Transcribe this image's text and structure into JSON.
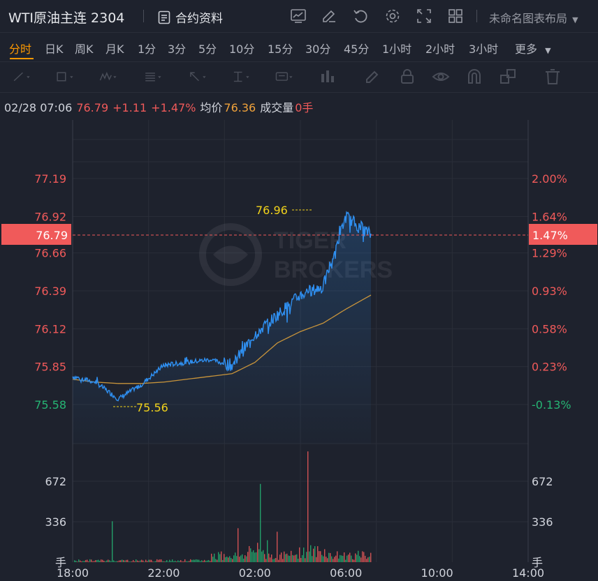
{
  "header": {
    "symbol": "WTI原油主连 2304",
    "contract_label": "合约资料",
    "layout_name": "未命名图表布局",
    "icons": [
      "chart-icon",
      "edit-icon",
      "undo-icon",
      "settings-icon",
      "fullscreen-icon",
      "grid-icon"
    ]
  },
  "intervals": {
    "items": [
      "分时",
      "日K",
      "周K",
      "月K",
      "1分",
      "3分",
      "5分",
      "10分",
      "15分",
      "30分",
      "45分",
      "1小时",
      "2小时",
      "3小时"
    ],
    "active": "分时",
    "more_label": "更多"
  },
  "drawing_tools": [
    "line-tool-icon",
    "rect-tool-icon",
    "pattern-tool-icon",
    "fib-tool-icon",
    "arrow-tool-icon",
    "measure-tool-icon",
    "text-tool-icon",
    "chart-type-icon",
    "brush-icon",
    "lock-icon",
    "eye-icon",
    "magnet-icon",
    "layers-icon",
    "trash-icon"
  ],
  "info": {
    "datetime": "02/28 07:06",
    "price": "76.79",
    "change": "+1.11",
    "change_pct": "+1.47%",
    "avg_label": "均价",
    "avg_value": "76.36",
    "vol_label": "成交量",
    "vol_value": "0手"
  },
  "watermark": "TIGER BROKERS",
  "colors": {
    "up": "#f05a5a",
    "down": "#26b574",
    "price_line": "#2f8ff0",
    "avg_line": "#c8943b",
    "marker": "#f2d31b",
    "accent": "#ff9900"
  },
  "chart_data": {
    "type": "line",
    "price_axis_left": [
      "77.19",
      "76.92",
      "76.66",
      "76.39",
      "76.12",
      "75.85",
      "75.58"
    ],
    "pct_axis_right": [
      "2.00%",
      "1.64%",
      "1.29%",
      "0.93%",
      "0.58%",
      "0.23%",
      "-0.13%"
    ],
    "current_price": "76.79",
    "current_pct": "1.47%",
    "high_marker": "76.96",
    "low_marker": "75.56",
    "volume_axis": [
      "672",
      "336",
      "手"
    ],
    "x_ticks": [
      "18:00",
      "22:00",
      "02:00",
      "06:00",
      "10:00",
      "14:00"
    ],
    "series": [
      {
        "name": "price",
        "x": [
          "18:00",
          "19:00",
          "20:00",
          "21:00",
          "22:00",
          "23:00",
          "00:00",
          "01:00",
          "02:00",
          "03:00",
          "04:00",
          "05:00",
          "06:00",
          "07:06"
        ],
        "values": [
          75.78,
          75.74,
          75.62,
          75.72,
          75.86,
          75.88,
          75.9,
          75.86,
          76.08,
          76.22,
          76.36,
          76.42,
          76.92,
          76.79
        ]
      },
      {
        "name": "avg",
        "x": [
          "18:00",
          "19:00",
          "20:00",
          "21:00",
          "22:00",
          "23:00",
          "00:00",
          "01:00",
          "02:00",
          "03:00",
          "04:00",
          "05:00",
          "06:00",
          "07:06"
        ],
        "values": [
          75.76,
          75.74,
          75.73,
          75.73,
          75.74,
          75.76,
          75.78,
          75.8,
          75.88,
          76.02,
          76.1,
          76.16,
          76.26,
          76.36
        ]
      }
    ]
  }
}
